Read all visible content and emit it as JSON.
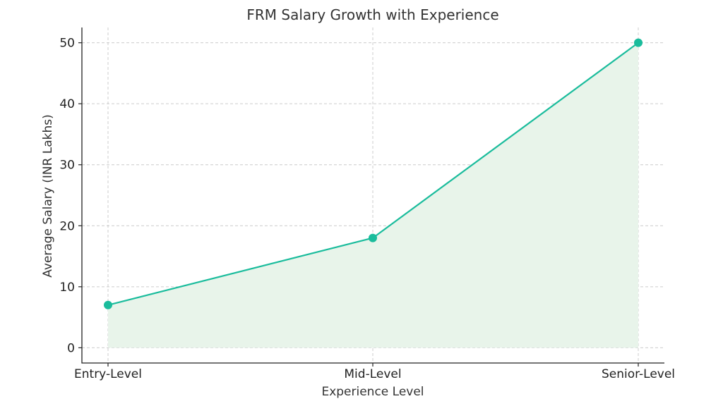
{
  "chart_data": {
    "type": "line",
    "title": "FRM Salary Growth with Experience",
    "xlabel": "Experience Level",
    "ylabel": "Average Salary (INR Lakhs)",
    "categories": [
      "Entry-Level",
      "Mid-Level",
      "Senior-Level"
    ],
    "series": [
      {
        "values": [
          7,
          18,
          50
        ]
      }
    ],
    "ylim": [
      -2.5,
      52.5
    ],
    "yticks": [
      0,
      10,
      20,
      30,
      40,
      50
    ],
    "grid": true,
    "area_fill": true,
    "colors": {
      "line": "#1abc9c",
      "fill": "#e8f4ea"
    }
  }
}
